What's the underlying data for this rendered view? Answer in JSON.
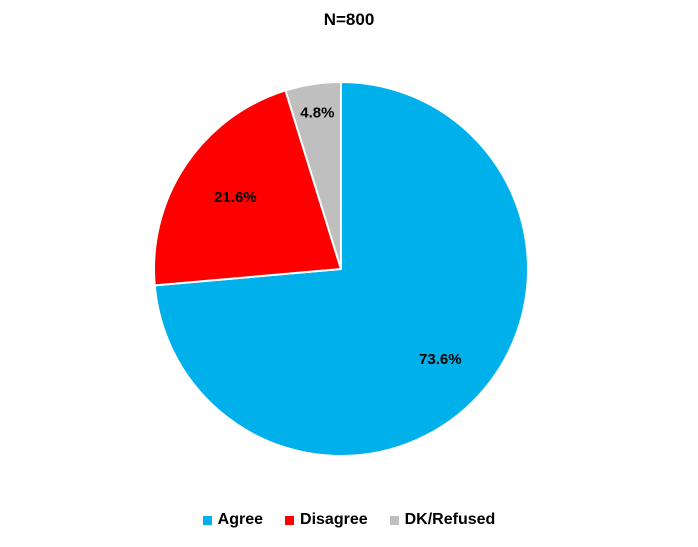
{
  "chart_data": {
    "type": "pie",
    "title": "N=800",
    "categories": [
      "Agree",
      "Disagree",
      "DK/Refused"
    ],
    "values": [
      73.6,
      21.6,
      4.8
    ],
    "labels": [
      "73.6%",
      "21.6%",
      "4.8%"
    ],
    "colors": [
      "#00B0EA",
      "#FF0000",
      "#BFBFBF"
    ],
    "legend_position": "bottom",
    "start": "12 o'clock",
    "direction": "clockwise"
  }
}
